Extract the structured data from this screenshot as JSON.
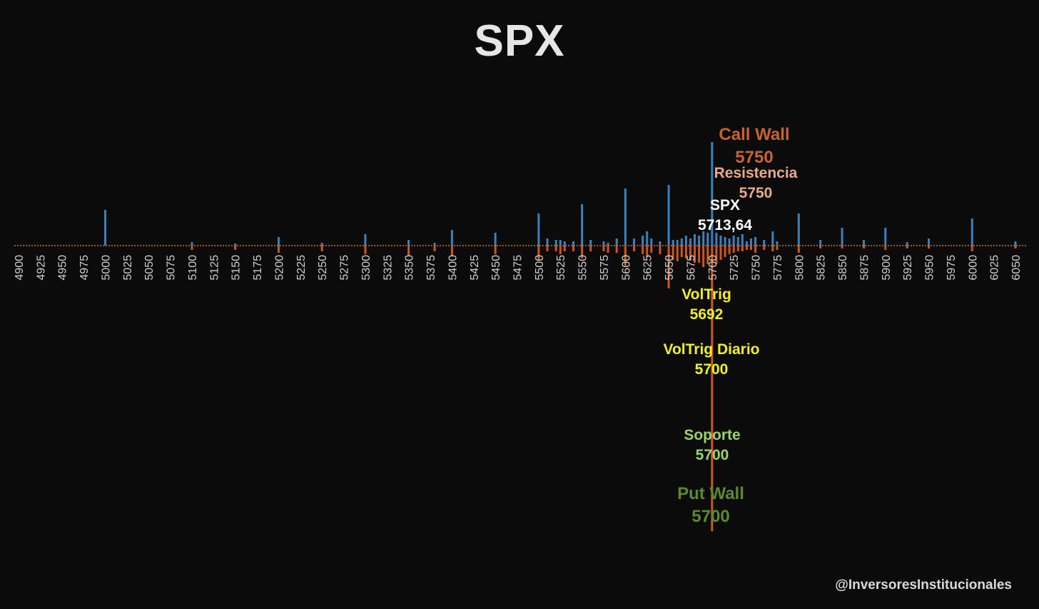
{
  "title": "SPX",
  "watermark": "@InversoresInstitucionales",
  "colors": {
    "background": "#0b0b0b",
    "call_bar": "#3e8fd0",
    "put_bar": "#e2621b",
    "call_wall": "#c8632e",
    "resistencia": "#e8a98a",
    "spx": "#ffffff",
    "voltrig": "#f2f214",
    "soporte": "#9bd36b",
    "put_wall": "#5c8a2b"
  },
  "annotations": {
    "call_wall": {
      "label": "Call Wall",
      "value": "5750"
    },
    "resistencia": {
      "label": "Resistencia",
      "value": "5750"
    },
    "spx": {
      "label": "SPX",
      "value": "5713,64"
    },
    "voltrig": {
      "label": "VolTrig",
      "value": "5692"
    },
    "voltrig_diario": {
      "label": "VolTrig Diario",
      "value": "5700"
    },
    "soporte": {
      "label": "Soporte",
      "value": "5700"
    },
    "put_wall": {
      "label": "Put Wall",
      "value": "5700"
    }
  },
  "chart_data": {
    "type": "bar",
    "title": "SPX",
    "xlabel": "",
    "ylabel": "",
    "x_tick_labels": [
      "4900",
      "4925",
      "4950",
      "4975",
      "5000",
      "5025",
      "5050",
      "5075",
      "5100",
      "5125",
      "5150",
      "5175",
      "5200",
      "5225",
      "5250",
      "5275",
      "5300",
      "5325",
      "5350",
      "5375",
      "5400",
      "5425",
      "5450",
      "5475",
      "5500",
      "5525",
      "5550",
      "5575",
      "5600",
      "5625",
      "5650",
      "5675",
      "5700",
      "5725",
      "5750",
      "5775",
      "5800",
      "5825",
      "5850",
      "5875",
      "5900",
      "5925",
      "5950",
      "5975",
      "6000",
      "6025",
      "6050"
    ],
    "strikes": [
      5000,
      5100,
      5150,
      5200,
      5250,
      5300,
      5350,
      5380,
      5400,
      5450,
      5500,
      5510,
      5520,
      5525,
      5530,
      5540,
      5550,
      5560,
      5575,
      5580,
      5590,
      5600,
      5610,
      5620,
      5625,
      5630,
      5640,
      5650,
      5655,
      5660,
      5665,
      5670,
      5675,
      5680,
      5685,
      5690,
      5695,
      5700,
      5705,
      5710,
      5715,
      5720,
      5725,
      5730,
      5735,
      5740,
      5745,
      5750,
      5760,
      5770,
      5775,
      5800,
      5825,
      5850,
      5875,
      5900,
      5925,
      5950,
      6000,
      6050
    ],
    "series": [
      {
        "name": "",
        "values": [
          50,
          5,
          3,
          12,
          4,
          16,
          8,
          4,
          22,
          18,
          45,
          10,
          8,
          8,
          6,
          6,
          58,
          8,
          6,
          4,
          10,
          80,
          10,
          14,
          20,
          10,
          6,
          85,
          8,
          8,
          10,
          14,
          10,
          16,
          14,
          20,
          18,
          145,
          18,
          14,
          12,
          10,
          14,
          12,
          16,
          6,
          10,
          12,
          8,
          20,
          6,
          45,
          8,
          25,
          8,
          25,
          5,
          10,
          38,
          6
        ]
      },
      {
        "name": "",
        "values": [
          0,
          -6,
          -6,
          -10,
          -8,
          -12,
          -14,
          -8,
          -14,
          -12,
          -20,
          -8,
          -8,
          -12,
          -8,
          -8,
          -18,
          -8,
          -8,
          -10,
          -10,
          -28,
          -8,
          -12,
          -16,
          -10,
          -12,
          -60,
          -20,
          -22,
          -16,
          -18,
          -20,
          -24,
          -24,
          -30,
          -26,
          -400,
          -26,
          -20,
          -16,
          -12,
          -10,
          -8,
          -8,
          -6,
          -6,
          -10,
          -6,
          -8,
          -6,
          -10,
          -4,
          -4,
          -4,
          -6,
          -4,
          -4,
          -8,
          -4
        ]
      }
    ],
    "xlim": [
      4900,
      6060
    ],
    "legend": "none",
    "grid": false
  }
}
